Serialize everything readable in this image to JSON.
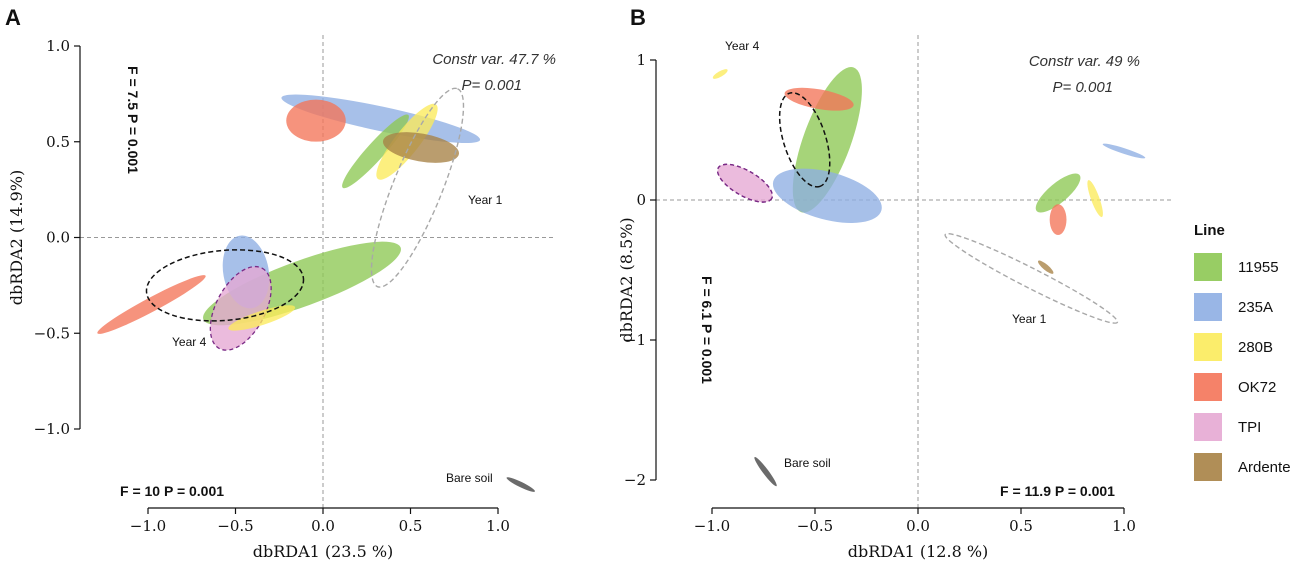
{
  "chart_data": [
    {
      "panel": "A",
      "type": "scatter",
      "xlabel": "dbRDA1 (23.5 %)",
      "ylabel": "dbRDA2 (14.9%)",
      "xlim": [
        -1.0,
        1.0
      ],
      "ylim": [
        -1.0,
        1.0
      ],
      "xticks": [
        -1.0,
        -0.5,
        0.0,
        0.5,
        1.0
      ],
      "yticks": [
        -1.0,
        -0.5,
        0.0,
        0.5,
        1.0
      ],
      "xtick_labels": [
        "−1.0",
        "−0.5",
        "0.0",
        "0.5",
        "1.0"
      ],
      "ytick_labels": [
        "−1.0",
        "−0.5",
        "0.0",
        "0.5",
        "1.0"
      ],
      "reference_lines": true,
      "constr_var": "Constr var.  47.7 %",
      "p_value": "P=  0.001",
      "stat_vertical": "F = 7.5  P = 0.001",
      "stat_horizontal": "F = 10  P = 0.001",
      "annotations": [
        "Year 1",
        "Year 4",
        "Bare soil"
      ],
      "ellipses": [
        {
          "line": "235A",
          "year": 1,
          "cx": 0.33,
          "cy": 0.62,
          "rx": 0.58,
          "ry": 0.07,
          "angle": -12
        },
        {
          "line": "11955",
          "year": 1,
          "cx": 0.3,
          "cy": 0.45,
          "rx": 0.28,
          "ry": 0.05,
          "angle": 48
        },
        {
          "line": "280B",
          "year": 1,
          "cx": 0.48,
          "cy": 0.5,
          "rx": 0.27,
          "ry": 0.07,
          "angle": 52
        },
        {
          "line": "OK72",
          "year": 1,
          "cx": -0.04,
          "cy": 0.61,
          "rx": 0.17,
          "ry": 0.12,
          "angle": 0
        },
        {
          "line": "Ardente",
          "year": 1,
          "cx": 0.56,
          "cy": 0.47,
          "rx": 0.22,
          "ry": 0.08,
          "angle": -10
        },
        {
          "line": "11955",
          "year": 4,
          "cx": -0.12,
          "cy": -0.24,
          "rx": 0.6,
          "ry": 0.13,
          "angle": 20
        },
        {
          "line": "235A",
          "year": 4,
          "cx": -0.44,
          "cy": -0.18,
          "rx": 0.21,
          "ry": 0.13,
          "angle": 100
        },
        {
          "line": "OK72",
          "year": 4,
          "cx": -0.98,
          "cy": -0.35,
          "rx": 0.35,
          "ry": 0.04,
          "angle": 28
        },
        {
          "line": "TPI",
          "year": 4,
          "cx": -0.47,
          "cy": -0.37,
          "rx": 0.26,
          "ry": 0.14,
          "angle": 62
        },
        {
          "line": "280B",
          "year": 4,
          "cx": -0.35,
          "cy": -0.42,
          "rx": 0.2,
          "ry": 0.04,
          "angle": 18
        },
        {
          "line": "Year 1",
          "cx": 0.54,
          "cy": 0.26,
          "rx": 0.61,
          "ry": 0.14,
          "angle": 68,
          "kind": "year_hull_gray"
        },
        {
          "line": "Year 4",
          "cx": -0.56,
          "cy": -0.25,
          "rx": 0.45,
          "ry": 0.2,
          "angle": 5,
          "kind": "year_hull_black"
        },
        {
          "line": "Bare soil",
          "cx": 1.13,
          "cy": -1.29,
          "rx": 0.09,
          "ry": 0.015,
          "angle": -26,
          "kind": "bare_soil"
        }
      ]
    },
    {
      "panel": "B",
      "type": "scatter",
      "xlabel": "dbRDA1 (12.8 %)",
      "ylabel": "dbRDA2 (8.5%)",
      "xlim": [
        -1.0,
        1.0
      ],
      "ylim": [
        -2.0,
        1.0
      ],
      "xticks": [
        -1.0,
        -0.5,
        0.0,
        0.5,
        1.0
      ],
      "yticks": [
        -2,
        -1,
        0,
        1
      ],
      "xtick_labels": [
        "−1.0",
        "−0.5",
        "0.0",
        "0.5",
        "1.0"
      ],
      "ytick_labels": [
        "−2",
        "−1",
        "0",
        "1"
      ],
      "reference_lines": true,
      "constr_var": "Constr var.  49 %",
      "p_value": "P=  0.001",
      "stat_vertical": "F = 6.1  P = 0.001",
      "stat_horizontal": "F = 11.9  P = 0.001",
      "annotations": [
        "Year 4",
        "Year 1",
        "Bare soil"
      ],
      "ellipses": [
        {
          "line": "11955",
          "year": 4,
          "cx": -0.44,
          "cy": 0.43,
          "rx": 0.55,
          "ry": 0.17,
          "angle": 70
        },
        {
          "line": "235A",
          "year": 4,
          "cx": -0.44,
          "cy": 0.03,
          "rx": 0.4,
          "ry": 0.17,
          "angle": -15
        },
        {
          "line": "OK72",
          "year": 4,
          "cx": -0.48,
          "cy": 0.72,
          "rx": 0.25,
          "ry": 0.07,
          "angle": -10
        },
        {
          "line": "280B",
          "year": 4,
          "cx": -0.96,
          "cy": 0.9,
          "rx": 0.06,
          "ry": 0.02,
          "angle": 30
        },
        {
          "line": "TPI",
          "year": 4,
          "cx": -0.84,
          "cy": 0.12,
          "rx": 0.22,
          "ry": 0.09,
          "angle": -30
        },
        {
          "line": "11955",
          "year": 1,
          "cx": 0.68,
          "cy": 0.05,
          "rx": 0.2,
          "ry": 0.07,
          "angle": 40
        },
        {
          "line": "OK72",
          "year": 1,
          "cx": 0.68,
          "cy": -0.14,
          "rx": 0.11,
          "ry": 0.06,
          "angle": 90
        },
        {
          "line": "280B",
          "year": 1,
          "cx": 0.86,
          "cy": 0.01,
          "rx": 0.14,
          "ry": 0.03,
          "angle": 110
        },
        {
          "line": "235A",
          "year": 1,
          "cx": 1.0,
          "cy": 0.35,
          "rx": 0.16,
          "ry": 0.02,
          "angle": -18
        },
        {
          "line": "Ardente",
          "year": 1,
          "cx": 0.62,
          "cy": -0.48,
          "rx": 0.07,
          "ry": 0.02,
          "angle": -40
        },
        {
          "line": "Year 1",
          "cx": 0.55,
          "cy": -0.56,
          "rx": 0.69,
          "ry": 0.07,
          "angle": -27,
          "kind": "year_hull_gray"
        },
        {
          "line": "Year 4",
          "cx": -0.55,
          "cy": 0.43,
          "rx": 0.35,
          "ry": 0.15,
          "angle": -72,
          "kind": "year_hull_black"
        },
        {
          "line": "TPI",
          "cx": -0.84,
          "cy": 0.12,
          "rx": 0.22,
          "ry": 0.09,
          "angle": -30,
          "kind": "outline_purple"
        },
        {
          "line": "Bare soil",
          "cx": -0.74,
          "cy": -1.94,
          "rx": 0.13,
          "ry": 0.02,
          "angle": -53,
          "kind": "bare_soil"
        }
      ]
    }
  ],
  "legend": {
    "title": "Line",
    "items": [
      {
        "label": "11955",
        "color": "#8dc853"
      },
      {
        "label": "235A",
        "color": "#8eaee3"
      },
      {
        "label": "280B",
        "color": "#fbeb5b"
      },
      {
        "label": "OK72",
        "color": "#f47459"
      },
      {
        "label": "TPI",
        "color": "#e5a8d3"
      },
      {
        "label": "Ardente",
        "color": "#a78245"
      }
    ]
  },
  "panel_labels": [
    "A",
    "B"
  ]
}
